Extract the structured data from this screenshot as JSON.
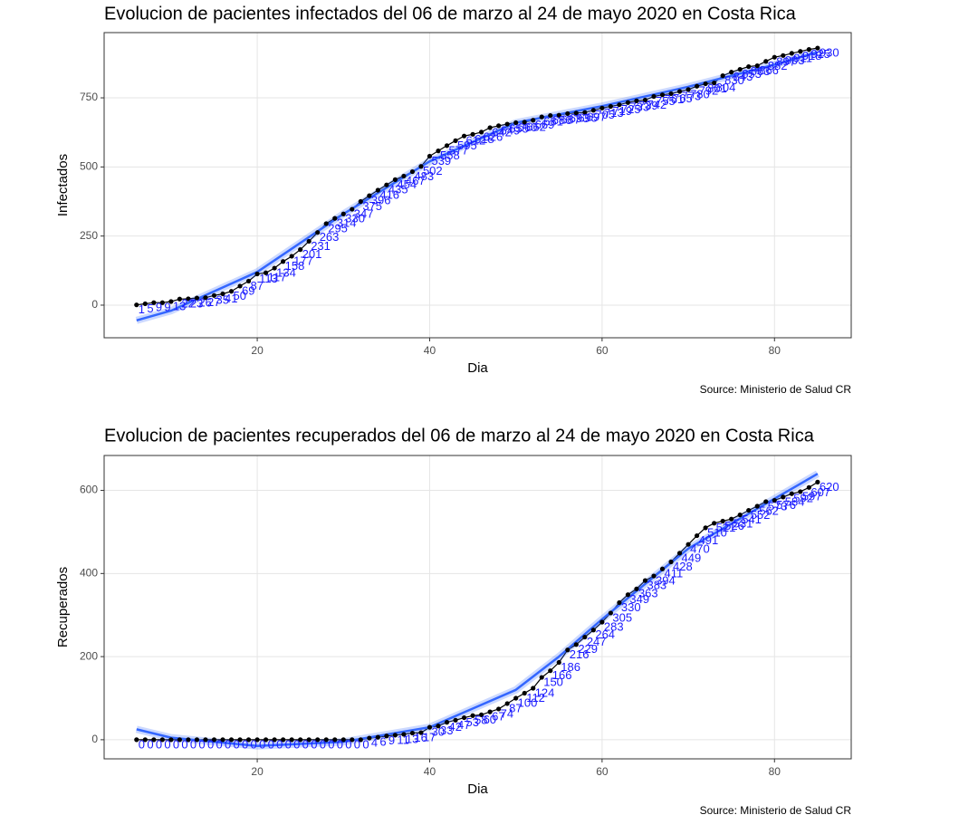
{
  "chart_data": [
    {
      "type": "line",
      "title": "Evolucion de pacientes infectados del 06 de marzo al 24 de mayo 2020 en Costa Rica",
      "x_label": "Dia",
      "y_label": "Infectados",
      "caption": "Source: Ministerio de Salud CR",
      "x": [
        6,
        7,
        8,
        9,
        10,
        11,
        12,
        13,
        14,
        15,
        16,
        17,
        18,
        19,
        20,
        21,
        22,
        23,
        24,
        25,
        26,
        27,
        28,
        29,
        30,
        31,
        32,
        33,
        34,
        35,
        36,
        37,
        38,
        39,
        40,
        41,
        42,
        43,
        44,
        45,
        46,
        47,
        48,
        49,
        50,
        51,
        52,
        53,
        54,
        55,
        56,
        57,
        58,
        59,
        60,
        61,
        62,
        63,
        64,
        65,
        66,
        67,
        68,
        69,
        70,
        71,
        72,
        73,
        74,
        75,
        76,
        77,
        78,
        79,
        80,
        81,
        82,
        83,
        84,
        85
      ],
      "values": [
        1,
        5,
        9,
        9,
        13,
        22,
        23,
        26,
        27,
        35,
        41,
        50,
        69,
        87,
        113,
        117,
        134,
        158,
        177,
        201,
        231,
        263,
        295,
        314,
        330,
        347,
        375,
        396,
        416,
        435,
        454,
        467,
        483,
        502,
        539,
        558,
        577,
        595,
        612,
        618,
        626,
        642,
        649,
        655,
        660,
        662,
        669,
        681,
        686,
        687,
        693,
        695,
        697,
        705,
        713,
        719,
        725,
        733,
        739,
        742,
        755,
        761,
        765,
        773,
        780,
        792,
        801,
        804,
        830,
        843,
        853,
        863,
        866,
        882,
        897,
        903,
        911,
        918,
        925,
        930
      ],
      "color": "#000000",
      "label_color": "#1a1aff",
      "trend": {
        "color": "#3366ff",
        "x": [
          6,
          10,
          20,
          30,
          40,
          50,
          60,
          70,
          80,
          85
        ],
        "values": [
          -55,
          -20,
          120,
          330,
          520,
          660,
          720,
          790,
          870,
          915
        ]
      },
      "xlim": [
        2.24,
        88.9
      ],
      "xticks": [
        20,
        40,
        60,
        80
      ],
      "ylim": [
        -118,
        986
      ],
      "yticks": [
        0,
        250,
        500,
        750
      ],
      "grid": true
    },
    {
      "type": "line",
      "title": "Evolucion de pacientes recuperados del 06 de marzo al 24 de mayo 2020 en Costa Rica",
      "x_label": "Dia",
      "y_label": "Recuperados",
      "caption": "Source: Ministerio de Salud CR",
      "x": [
        6,
        7,
        8,
        9,
        10,
        11,
        12,
        13,
        14,
        15,
        16,
        17,
        18,
        19,
        20,
        21,
        22,
        23,
        24,
        25,
        26,
        27,
        28,
        29,
        30,
        31,
        32,
        33,
        34,
        35,
        36,
        37,
        38,
        39,
        40,
        41,
        42,
        43,
        44,
        45,
        46,
        47,
        48,
        49,
        50,
        51,
        52,
        53,
        54,
        55,
        56,
        57,
        58,
        59,
        60,
        61,
        62,
        63,
        64,
        65,
        66,
        67,
        68,
        69,
        70,
        71,
        72,
        73,
        74,
        75,
        76,
        77,
        78,
        79,
        80,
        81,
        82,
        83,
        84,
        85
      ],
      "values": [
        0,
        0,
        0,
        0,
        0,
        0,
        0,
        0,
        0,
        0,
        0,
        0,
        0,
        0,
        0,
        0,
        0,
        0,
        0,
        0,
        0,
        0,
        0,
        0,
        0,
        0,
        0,
        4,
        6,
        9,
        11,
        13,
        16,
        17,
        30,
        33,
        42,
        47,
        53,
        58,
        60,
        67,
        74,
        87,
        100,
        112,
        124,
        150,
        166,
        186,
        216,
        229,
        247,
        264,
        283,
        305,
        330,
        349,
        363,
        383,
        394,
        411,
        428,
        449,
        470,
        491,
        510,
        521,
        526,
        531,
        541,
        552,
        562,
        573,
        576,
        584,
        592,
        597,
        607,
        620
      ],
      "color": "#000000",
      "label_color": "#1a1aff",
      "trend": {
        "color": "#3366ff",
        "x": [
          6,
          10,
          20,
          30,
          40,
          50,
          55,
          60,
          70,
          80,
          85
        ],
        "values": [
          25,
          5,
          -15,
          -5,
          30,
          120,
          200,
          290,
          460,
          580,
          640
        ]
      },
      "xlim": [
        2.24,
        88.9
      ],
      "xticks": [
        20,
        40,
        60,
        80
      ],
      "ylim": [
        -46,
        684
      ],
      "yticks": [
        0,
        200,
        400,
        600
      ],
      "grid": true
    }
  ]
}
